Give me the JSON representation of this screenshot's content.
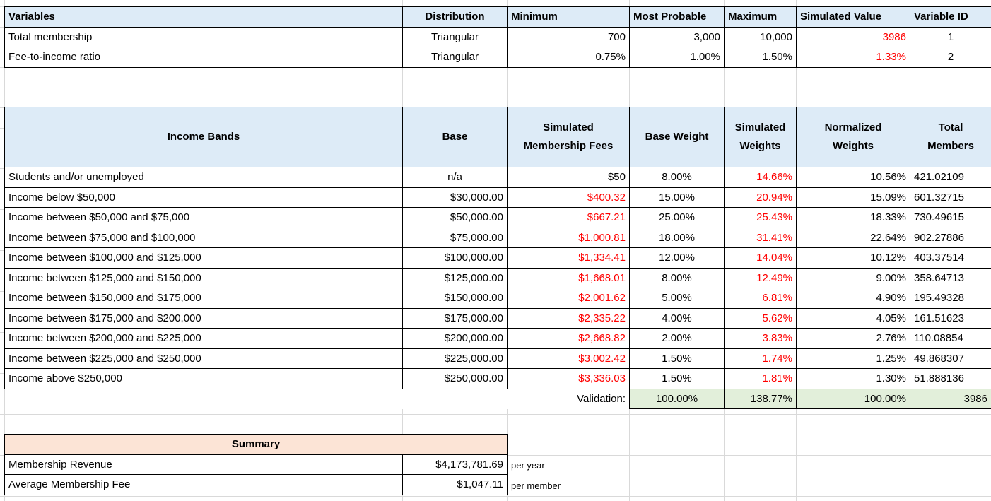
{
  "colors": {
    "header_fill": "#DDEBF7",
    "validation_fill": "#E2EFDA",
    "summary_fill": "#FCE4D6",
    "simulated_value_text": "#FF0000",
    "border": "#000000",
    "gridline": "#D9D9D9"
  },
  "variables_table": {
    "headers": [
      "Variables",
      "Distribution",
      "Minimum",
      "Most Probable",
      "Maximum",
      "Simulated Value",
      "Variable ID"
    ],
    "rows": [
      {
        "name": "Total membership",
        "distribution": "Triangular",
        "minimum": "700",
        "most_probable": "3,000",
        "maximum": "10,000",
        "simulated_value": "3986",
        "variable_id": "1"
      },
      {
        "name": "Fee-to-income ratio",
        "distribution": "Triangular",
        "minimum": "0.75%",
        "most_probable": "1.00%",
        "maximum": "1.50%",
        "simulated_value": "1.33%",
        "variable_id": "2"
      }
    ]
  },
  "income_table": {
    "headers": [
      "Income Bands",
      "Base",
      "Simulated\nMembership Fees",
      "Base Weight",
      "Simulated\nWeights",
      "Normalized\nWeights",
      "Total\nMembers"
    ],
    "rows": [
      {
        "band": "Students and/or unemployed",
        "base": "n/a",
        "fee": "$50",
        "base_weight": "8.00%",
        "simulated_weight": "14.66%",
        "normalized_weight": "10.56%",
        "total_members": "421.02109"
      },
      {
        "band": "Income below $50,000",
        "base": "$30,000.00",
        "fee": "$400.32",
        "base_weight": "15.00%",
        "simulated_weight": "20.94%",
        "normalized_weight": "15.09%",
        "total_members": "601.32715"
      },
      {
        "band": "Income between $50,000 and $75,000",
        "base": "$50,000.00",
        "fee": "$667.21",
        "base_weight": "25.00%",
        "simulated_weight": "25.43%",
        "normalized_weight": "18.33%",
        "total_members": "730.49615"
      },
      {
        "band": "Income between $75,000 and $100,000",
        "base": "$75,000.00",
        "fee": "$1,000.81",
        "base_weight": "18.00%",
        "simulated_weight": "31.41%",
        "normalized_weight": "22.64%",
        "total_members": "902.27886"
      },
      {
        "band": "Income between $100,000 and $125,000",
        "base": "$100,000.00",
        "fee": "$1,334.41",
        "base_weight": "12.00%",
        "simulated_weight": "14.04%",
        "normalized_weight": "10.12%",
        "total_members": "403.37514"
      },
      {
        "band": "Income between $125,000 and $150,000",
        "base": "$125,000.00",
        "fee": "$1,668.01",
        "base_weight": "8.00%",
        "simulated_weight": "12.49%",
        "normalized_weight": "9.00%",
        "total_members": "358.64713"
      },
      {
        "band": "Income between $150,000 and $175,000",
        "base": "$150,000.00",
        "fee": "$2,001.62",
        "base_weight": "5.00%",
        "simulated_weight": "6.81%",
        "normalized_weight": "4.90%",
        "total_members": "195.49328"
      },
      {
        "band": "Income between $175,000 and $200,000",
        "base": "$175,000.00",
        "fee": "$2,335.22",
        "base_weight": "4.00%",
        "simulated_weight": "5.62%",
        "normalized_weight": "4.05%",
        "total_members": "161.51623"
      },
      {
        "band": "Income between $200,000 and $225,000",
        "base": "$200,000.00",
        "fee": "$2,668.82",
        "base_weight": "2.00%",
        "simulated_weight": "3.83%",
        "normalized_weight": "2.76%",
        "total_members": "110.08854"
      },
      {
        "band": "Income between $225,000 and $250,000",
        "base": "$225,000.00",
        "fee": "$3,002.42",
        "base_weight": "1.50%",
        "simulated_weight": "1.74%",
        "normalized_weight": "1.25%",
        "total_members": "49.868307"
      },
      {
        "band": "Income above $250,000",
        "base": "$250,000.00",
        "fee": "$3,336.03",
        "base_weight": "1.50%",
        "simulated_weight": "1.81%",
        "normalized_weight": "1.30%",
        "total_members": "51.888136"
      }
    ],
    "validation": {
      "label": "Validation:",
      "base_weight": "100.00%",
      "simulated_weights": "138.77%",
      "normalized_weights": "100.00%",
      "total_members": "3986"
    }
  },
  "summary": {
    "title": "Summary",
    "rows": [
      {
        "label": "Membership Revenue",
        "value": "$4,173,781.69",
        "unit": "per year"
      },
      {
        "label": "Average Membership Fee",
        "value": "$1,047.11",
        "unit": "per member"
      }
    ]
  }
}
